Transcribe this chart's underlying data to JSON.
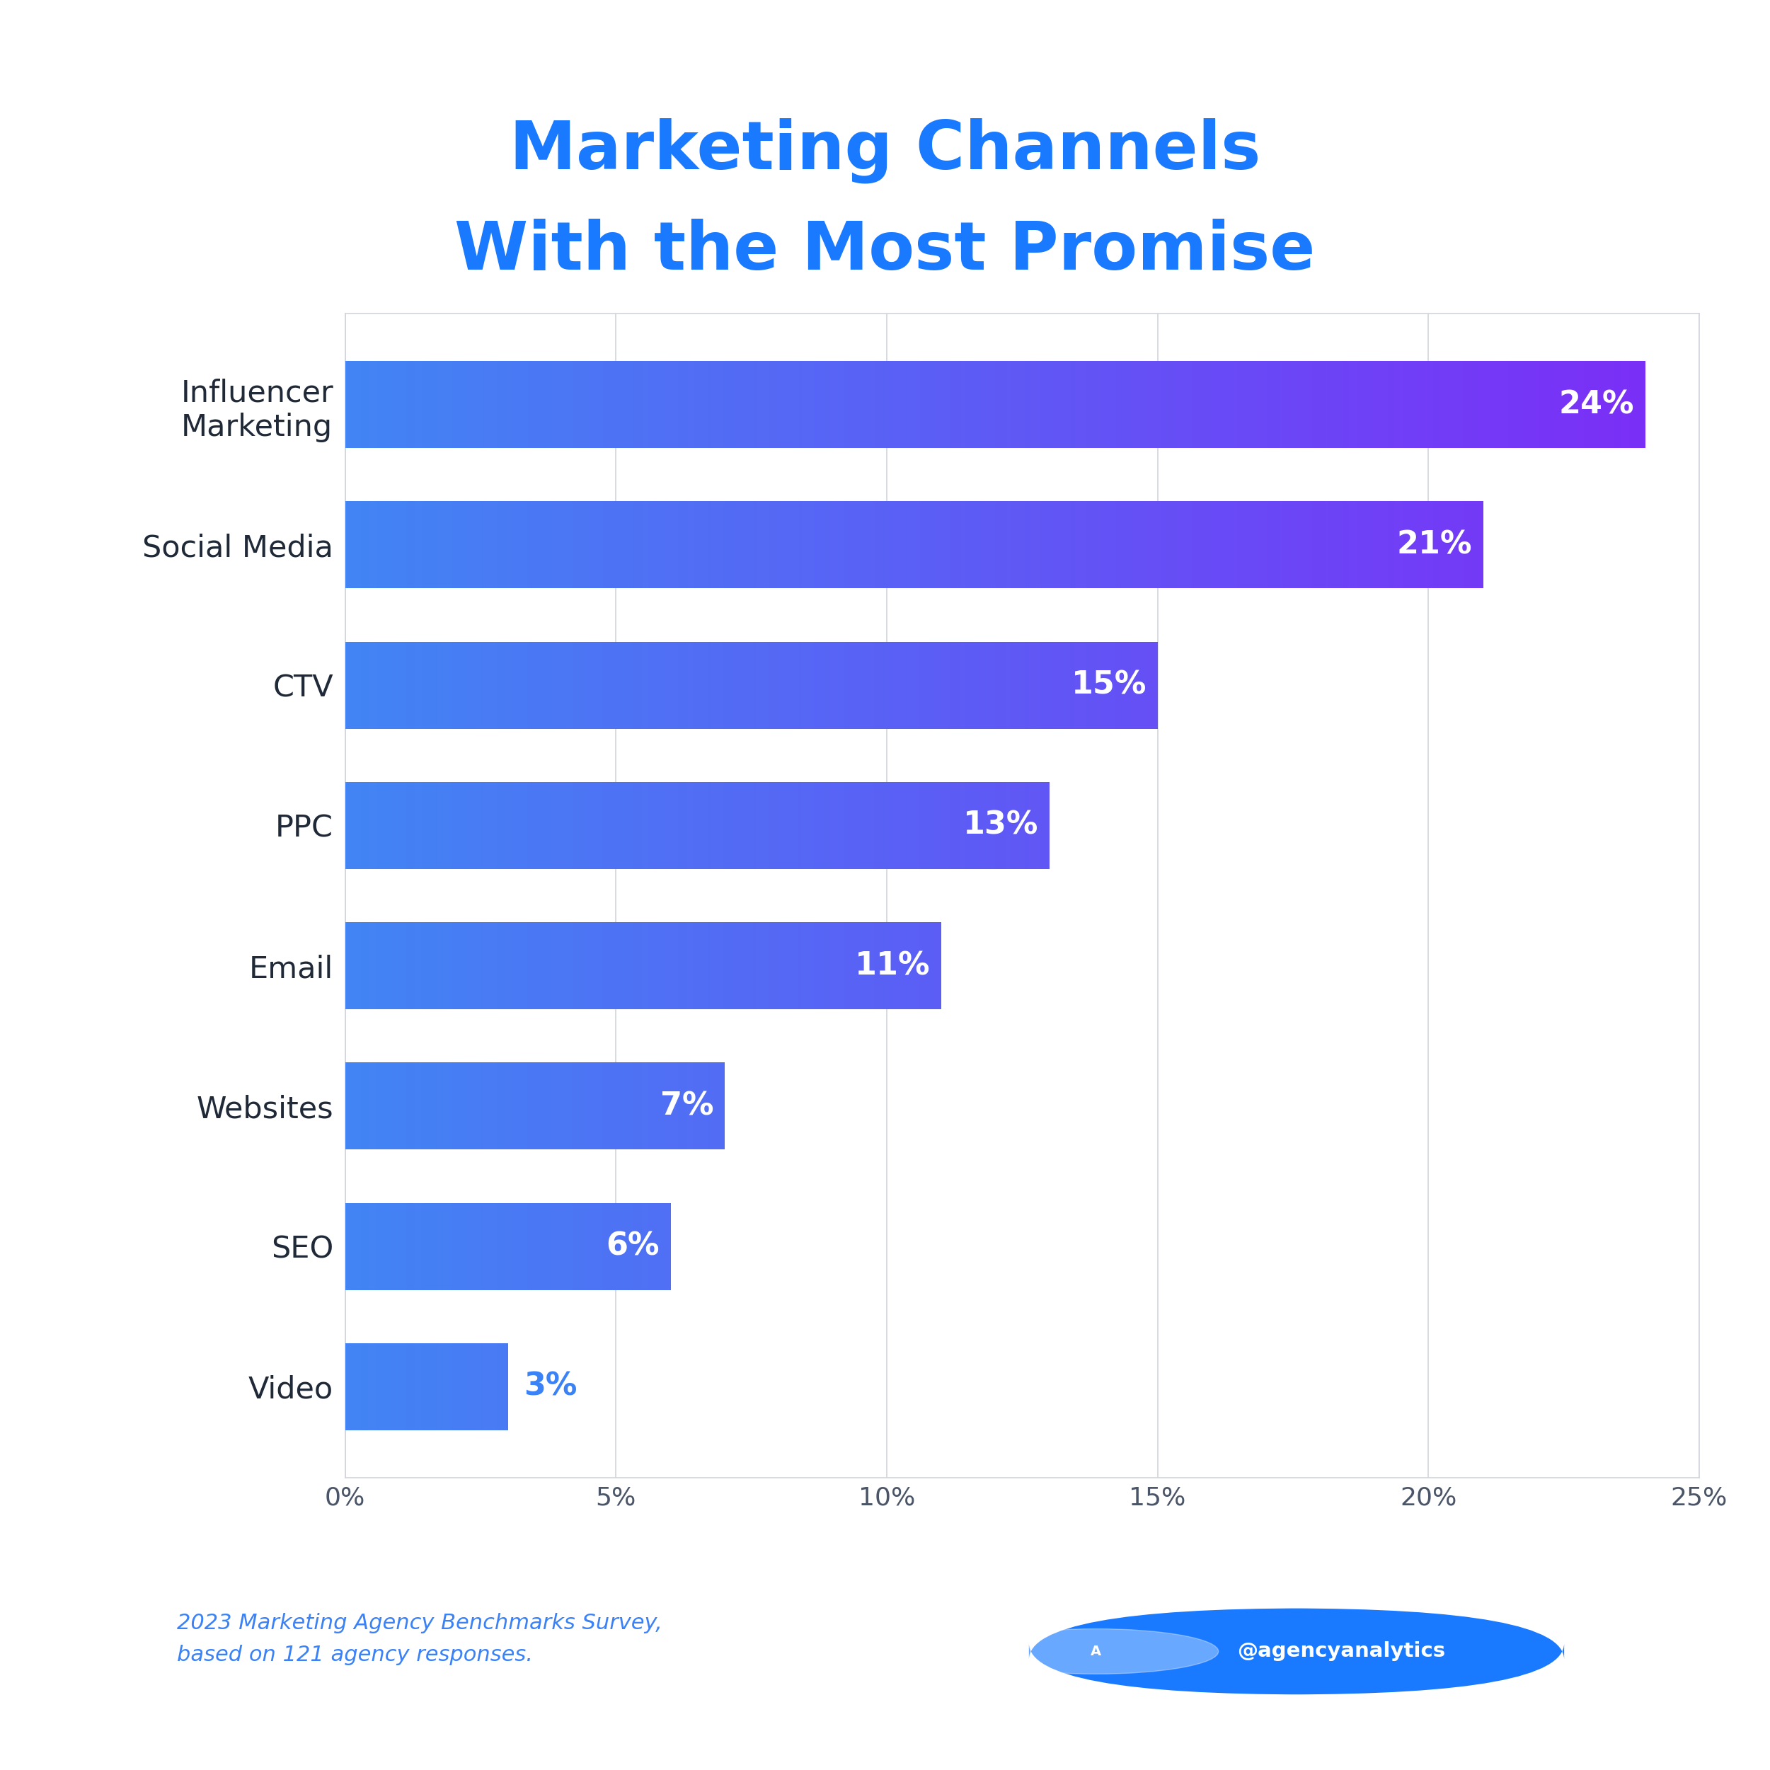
{
  "title_line1": "Marketing Channels",
  "title_line2": "With the Most Promise",
  "title_color": "#1a7aff",
  "categories": [
    "Influencer\nMarketing",
    "Social Media",
    "CTV",
    "PPC",
    "Email",
    "Websites",
    "SEO",
    "Video"
  ],
  "values": [
    24,
    21,
    15,
    13,
    11,
    7,
    6,
    3
  ],
  "bar_color_start": "#4285f4",
  "bar_color_end": "#7b2ff7",
  "label_color_in": "#ffffff",
  "label_color_out": "#3b82f6",
  "label_threshold": 4,
  "xlabel_ticks": [
    0,
    5,
    10,
    15,
    20,
    25
  ],
  "xlabel_tick_labels": [
    "0%",
    "5%",
    "10%",
    "15%",
    "20%",
    "25%"
  ],
  "tick_color": "#4a5568",
  "grid_color": "#d1d5db",
  "bg_color": "#ffffff",
  "plot_bg_color": "#ffffff",
  "footnote": "2023 Marketing Agency Benchmarks Survey,\nbased on 121 agency responses.",
  "footnote_color": "#3b82f6",
  "badge_text": "@agencyanalytics",
  "badge_bg": "#1a7aff",
  "badge_text_color": "#ffffff",
  "bar_height": 0.62,
  "xlim_max": 25,
  "yticklabel_color": "#1f2937",
  "yticklabel_fontsize": 31,
  "xticklabel_fontsize": 26,
  "title_fontsize": 68,
  "value_label_fontsize": 32,
  "footnote_fontsize": 22,
  "bar_spacing": 1.0
}
